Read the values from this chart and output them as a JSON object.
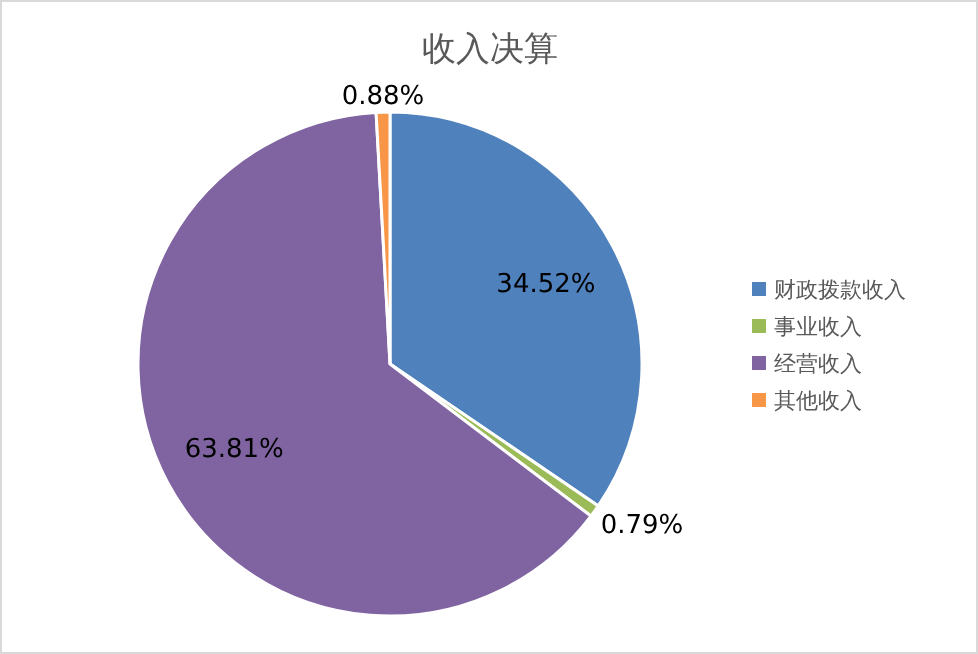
{
  "chart_data": {
    "type": "pie",
    "title": "收入决算",
    "categories": [
      "财政拨款收入",
      "事业收入",
      "经营收入",
      "其他收入"
    ],
    "values": [
      34.52,
      0.79,
      63.81,
      0.88
    ],
    "colors": [
      "#4f81bd",
      "#9bbb59",
      "#8064a2",
      "#f79646"
    ],
    "value_labels": [
      "34.52%",
      "0.79%",
      "63.81%",
      "0.88%"
    ],
    "legend": "right"
  }
}
